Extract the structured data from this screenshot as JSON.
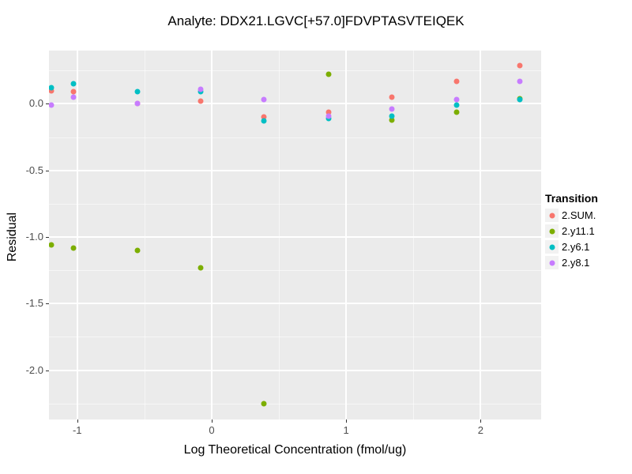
{
  "chart_data": {
    "type": "scatter",
    "title": "Analyte: DDX21.LGVC[+57.0]FDVPTASVTEIQEK",
    "xlabel": "Log Theoretical Concentration (fmol/ug)",
    "ylabel": "Residual",
    "xlim": [
      -1.21,
      2.45
    ],
    "ylim": [
      -2.37,
      0.4
    ],
    "grid": true,
    "panel_color": "#EBEBEB",
    "gridline_color": "#FFFFFF",
    "x_major_ticks": [
      {
        "value": -1,
        "label": "-1"
      },
      {
        "value": 0,
        "label": "0"
      },
      {
        "value": 1,
        "label": "1"
      },
      {
        "value": 2,
        "label": "2"
      }
    ],
    "x_minor_ticks": [
      -0.5,
      0.5,
      1.5
    ],
    "y_major_ticks": [
      {
        "value": 0.0,
        "label": "0.0"
      },
      {
        "value": -0.5,
        "label": "-0.5"
      },
      {
        "value": -1.0,
        "label": "-1.0"
      },
      {
        "value": -1.5,
        "label": "-1.5"
      },
      {
        "value": -2.0,
        "label": "-2.0"
      }
    ],
    "y_minor_ticks": [
      0.25,
      -0.25,
      -0.75,
      -1.25,
      -1.75,
      -2.25
    ],
    "legend": {
      "title": "Transition",
      "position": "right"
    },
    "x": [
      -1.19,
      -1.03,
      -0.55,
      -0.08,
      0.39,
      0.87,
      1.34,
      1.82,
      2.29
    ],
    "series": [
      {
        "name": "2.SUM.",
        "color": "#F8766D",
        "values": [
          0.1,
          0.09,
          0.0,
          0.02,
          -0.1,
          -0.06,
          0.05,
          0.17,
          0.29
        ]
      },
      {
        "name": "2.y11.1",
        "color": "#7CAE00",
        "values": [
          -1.06,
          -1.08,
          -1.1,
          -1.23,
          -2.25,
          0.22,
          -0.12,
          -0.06,
          0.04
        ]
      },
      {
        "name": "2.y6.1",
        "color": "#00BFC4",
        "values": [
          0.12,
          0.15,
          0.09,
          0.09,
          -0.13,
          -0.11,
          -0.09,
          -0.01,
          0.03
        ]
      },
      {
        "name": "2.y8.1",
        "color": "#C77CFF",
        "values": [
          -0.01,
          0.05,
          0.0,
          0.11,
          0.03,
          -0.09,
          -0.04,
          0.03,
          0.17
        ]
      }
    ]
  }
}
